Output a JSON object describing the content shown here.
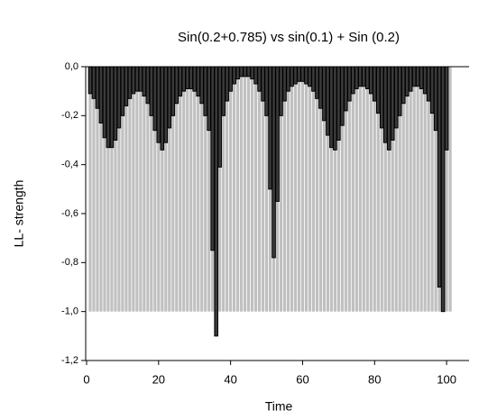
{
  "chart_data": {
    "type": "bar",
    "title": "Sin(0.2+0.785) vs sin(0.1) + Sin (0.2)",
    "x_label": "Time",
    "y_label": "LL- strength",
    "x": [
      1,
      2,
      3,
      4,
      5,
      6,
      7,
      8,
      9,
      10,
      11,
      12,
      13,
      14,
      15,
      16,
      17,
      18,
      19,
      20,
      21,
      22,
      23,
      24,
      25,
      26,
      27,
      28,
      29,
      30,
      31,
      32,
      33,
      34,
      35,
      36,
      37,
      38,
      39,
      40,
      41,
      42,
      43,
      44,
      45,
      46,
      47,
      48,
      49,
      50,
      51,
      52,
      53,
      54,
      55,
      56,
      57,
      58,
      59,
      60,
      61,
      62,
      63,
      64,
      65,
      66,
      67,
      68,
      69,
      70,
      71,
      72,
      73,
      74,
      75,
      76,
      77,
      78,
      79,
      80,
      81,
      82,
      83,
      84,
      85,
      86,
      87,
      88,
      89,
      90,
      91,
      92,
      93,
      94,
      95,
      96,
      97,
      98,
      99,
      100,
      101
    ],
    "series": [
      {
        "color": "#c0c0c0",
        "values": [
          -1.0,
          -1.0,
          -1.0,
          -1.0,
          -1.0,
          -1.0,
          -1.0,
          -1.0,
          -1.0,
          -1.0,
          -1.0,
          -1.0,
          -1.0,
          -1.0,
          -1.0,
          -1.0,
          -1.0,
          -1.0,
          -1.0,
          -1.0,
          -1.0,
          -1.0,
          -1.0,
          -1.0,
          -1.0,
          -1.0,
          -1.0,
          -1.0,
          -1.0,
          -1.0,
          -1.0,
          -1.0,
          -1.0,
          -1.0,
          -1.0,
          -1.0,
          -1.0,
          -1.0,
          -1.0,
          -1.0,
          -1.0,
          -1.0,
          -1.0,
          -1.0,
          -1.0,
          -1.0,
          -1.0,
          -1.0,
          -1.0,
          -1.0,
          -1.0,
          -1.0,
          -1.0,
          -1.0,
          -1.0,
          -1.0,
          -1.0,
          -1.0,
          -1.0,
          -1.0,
          -1.0,
          -1.0,
          -1.0,
          -1.0,
          -1.0,
          -1.0,
          -1.0,
          -1.0,
          -1.0,
          -1.0,
          -1.0,
          -1.0,
          -1.0,
          -1.0,
          -1.0,
          -1.0,
          -1.0,
          -1.0,
          -1.0,
          -1.0,
          -1.0,
          -1.0,
          -1.0,
          -1.0,
          -1.0,
          -1.0,
          -1.0,
          -1.0,
          -1.0,
          -1.0,
          -1.0,
          -1.0,
          -1.0,
          -1.0,
          -1.0,
          -1.0,
          -1.0,
          -1.0,
          -1.0,
          -1.0,
          -1.0
        ]
      },
      {
        "color": "#3a3a3a",
        "values": [
          -0.11,
          -0.13,
          -0.17,
          -0.23,
          -0.29,
          -0.33,
          -0.33,
          -0.3,
          -0.25,
          -0.2,
          -0.16,
          -0.13,
          -0.11,
          -0.1,
          -0.1,
          -0.12,
          -0.15,
          -0.2,
          -0.26,
          -0.31,
          -0.34,
          -0.31,
          -0.25,
          -0.2,
          -0.15,
          -0.12,
          -0.1,
          -0.09,
          -0.09,
          -0.1,
          -0.12,
          -0.15,
          -0.2,
          -0.26,
          -0.75,
          -1.1,
          -0.41,
          -0.2,
          -0.14,
          -0.1,
          -0.07,
          -0.05,
          -0.04,
          -0.04,
          -0.04,
          -0.05,
          -0.07,
          -0.1,
          -0.14,
          -0.2,
          -0.5,
          -0.78,
          -0.55,
          -0.2,
          -0.14,
          -0.1,
          -0.08,
          -0.07,
          -0.06,
          -0.06,
          -0.07,
          -0.08,
          -0.1,
          -0.13,
          -0.17,
          -0.22,
          -0.28,
          -0.33,
          -0.34,
          -0.3,
          -0.24,
          -0.18,
          -0.14,
          -0.11,
          -0.09,
          -0.08,
          -0.08,
          -0.09,
          -0.11,
          -0.14,
          -0.19,
          -0.25,
          -0.31,
          -0.34,
          -0.3,
          -0.25,
          -0.2,
          -0.15,
          -0.12,
          -0.1,
          -0.08,
          -0.08,
          -0.09,
          -0.11,
          -0.14,
          -0.19,
          -0.26,
          -0.9,
          -1.0,
          -0.34,
          null
        ]
      }
    ],
    "xlim": [
      -4.5,
      107
    ],
    "ylim": [
      -1.2,
      0.0
    ],
    "xticks": [
      0,
      20,
      40,
      60,
      80,
      100
    ],
    "yticks": [
      {
        "value": -1.2,
        "label": "-1,2"
      },
      {
        "value": -1.0,
        "label": "-1,0"
      },
      {
        "value": -0.8,
        "label": "-0,8"
      },
      {
        "value": -0.6,
        "label": "-0,6"
      },
      {
        "value": -0.4,
        "label": "-0,4"
      },
      {
        "value": -0.2,
        "label": "-0,2"
      },
      {
        "value": 0.0,
        "label": "0,0"
      }
    ],
    "grid": false
  }
}
